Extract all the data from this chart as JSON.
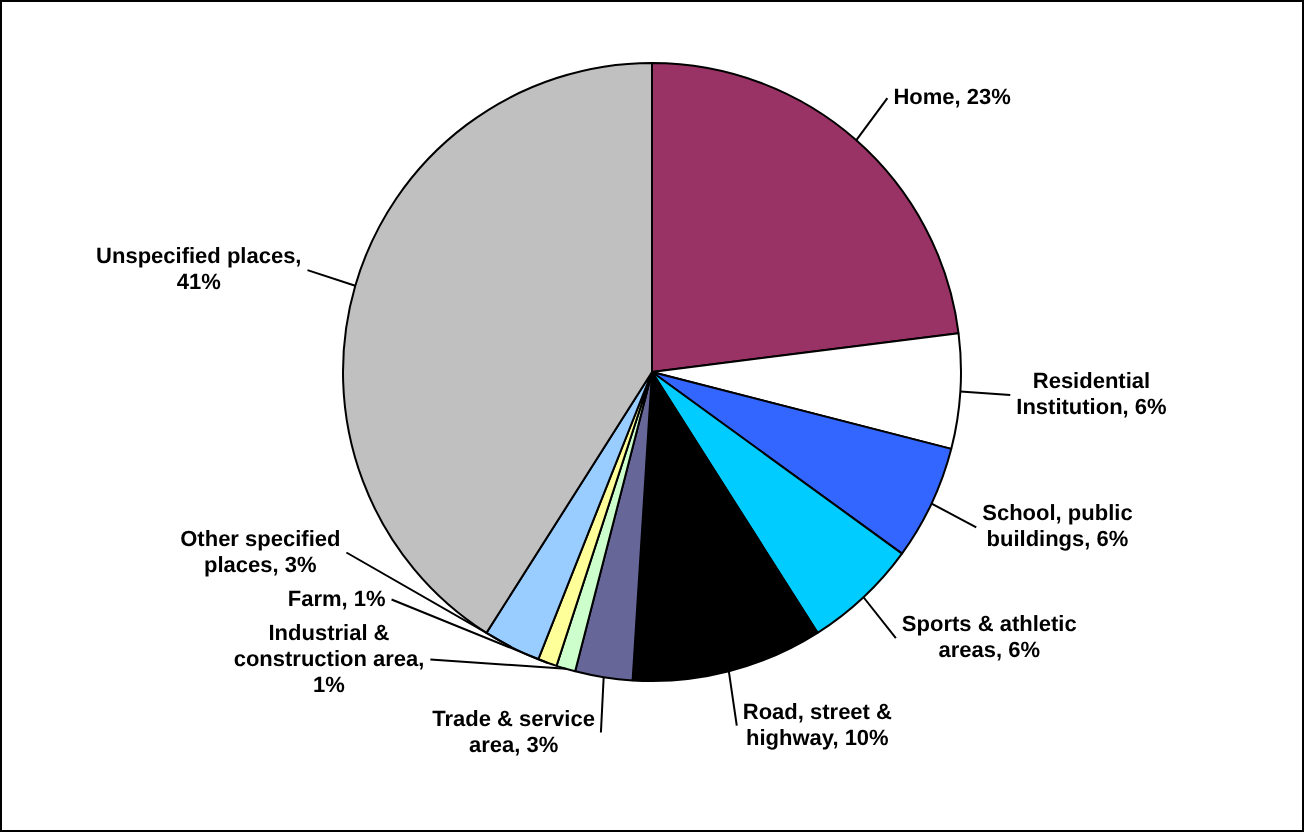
{
  "chart_data": {
    "type": "pie",
    "categories": [
      "Home, 23%",
      "Residential Institution, 6%",
      "School, public buildings, 6%",
      "Sports & athletic areas, 6%",
      "Road, street & highway, 10%",
      "Trade & service area, 3%",
      "Industrial & construction area, 1%",
      "Farm, 1%",
      "Other specified places, 3%",
      "Unspecified places, 41%"
    ],
    "values": [
      23,
      6,
      6,
      6,
      10,
      3,
      1,
      1,
      3,
      41
    ],
    "colors": [
      "#993366",
      "#ffffff",
      "#3366ff",
      "#00ccff",
      "#000000",
      "#666699",
      "#ccffcc",
      "#ffff99",
      "#99ccff",
      "#c0c0c0"
    ]
  }
}
